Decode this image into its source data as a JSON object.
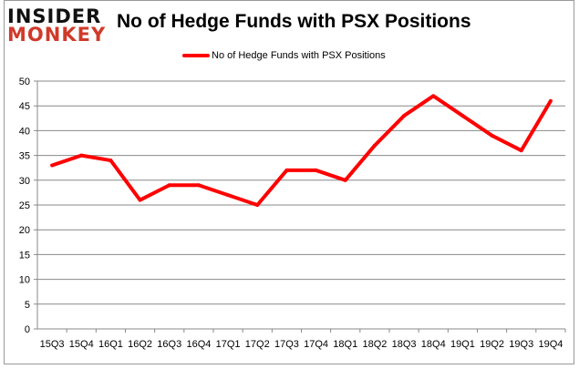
{
  "logo": {
    "line1": "INSIDER",
    "line2": "MONKEY"
  },
  "chart_data": {
    "type": "line",
    "title": "No of Hedge Funds with PSX Positions",
    "xlabel": "",
    "ylabel": "",
    "categories": [
      "15Q3",
      "15Q4",
      "16Q1",
      "16Q2",
      "16Q3",
      "16Q4",
      "17Q1",
      "17Q2",
      "17Q3",
      "17Q4",
      "18Q1",
      "18Q2",
      "18Q3",
      "18Q4",
      "19Q1",
      "19Q2",
      "19Q3",
      "19Q4"
    ],
    "series": [
      {
        "name": "No of Hedge Funds with PSX Positions",
        "values": [
          33,
          35,
          34,
          26,
          29,
          29,
          27,
          25,
          32,
          32,
          30,
          37,
          43,
          47,
          43,
          39,
          36,
          46
        ],
        "color": "#ff0000"
      }
    ],
    "ylim": [
      0,
      50
    ],
    "yticks": [
      0,
      5,
      10,
      15,
      20,
      25,
      30,
      35,
      40,
      45,
      50
    ],
    "grid": true,
    "legend": "top"
  }
}
